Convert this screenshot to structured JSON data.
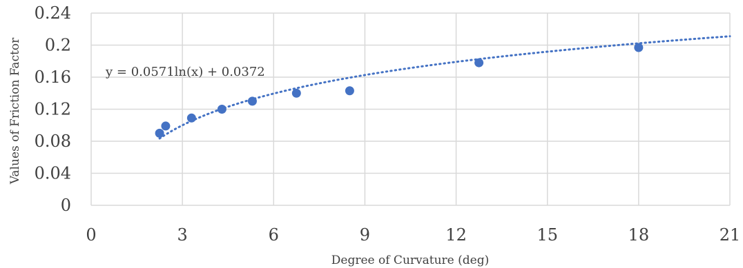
{
  "chart_data": {
    "type": "scatter",
    "title": "",
    "xlabel": "Degree of Curvature  (deg)",
    "ylabel": "Values of Friction Factor",
    "xlim": [
      0,
      21
    ],
    "ylim": [
      0,
      0.24
    ],
    "x_ticks": [
      "0",
      "3",
      "6",
      "9",
      "12",
      "15",
      "18",
      "21"
    ],
    "y_ticks": [
      "0",
      "0.04",
      "0.08",
      "0.12",
      "0.16",
      "0.2",
      "0.24"
    ],
    "grid": true,
    "legend": "none",
    "series": [
      {
        "points": [
          {
            "x": 2.25,
            "y": 0.09
          },
          {
            "x": 2.45,
            "y": 0.099
          },
          {
            "x": 3.3,
            "y": 0.109
          },
          {
            "x": 4.3,
            "y": 0.12
          },
          {
            "x": 5.3,
            "y": 0.13
          },
          {
            "x": 6.75,
            "y": 0.14
          },
          {
            "x": 8.5,
            "y": 0.143
          },
          {
            "x": 12.75,
            "y": 0.178
          },
          {
            "x": 18,
            "y": 0.197
          }
        ],
        "color": "#4472c4"
      }
    ],
    "trendline": {
      "type": "logarithmic",
      "a": 0.0571,
      "b": 0.0372,
      "x_from": 2.25,
      "x_to": 21,
      "equation": "y = 0.0571ln(x)  + 0.0372",
      "color": "#4472c4"
    }
  }
}
